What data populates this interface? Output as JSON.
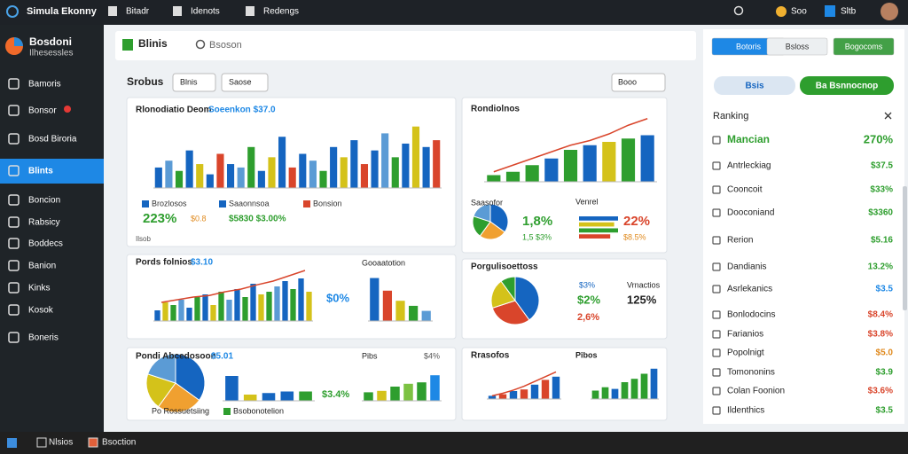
{
  "topbar": {
    "app_title": "Simula Ekonny",
    "menu": [
      "Bitadr",
      "Idenots",
      "Redengs"
    ],
    "coins": "Soo",
    "user": "Sltb"
  },
  "sidebar": {
    "brand": "Bosdoni",
    "brand_sub": "Ilhesessles",
    "active": 3,
    "items": [
      "Bamoris",
      "Bonsor",
      "Bosd Biroria",
      "Blints",
      "Boncion",
      "Rabsicy",
      "Boddecs",
      "Banion",
      "Kinks",
      "Kosok",
      "Boneris"
    ]
  },
  "tab": {
    "label": "Blinis",
    "search": "Bsoson"
  },
  "toolbar": {
    "title": "Srobus",
    "filters": [
      "Blnis",
      "Saose"
    ],
    "sort": "Booo"
  },
  "panels": [
    {
      "texts": [
        {
          "text": "Rlonodiatio Deom",
          "color": "#222"
        },
        {
          "text": "Soeenkon $37.0",
          "color": "#1e88e5"
        },
        {
          "text": "Brozlosos",
          "color": "#333",
          "swatch": "#1565c0"
        },
        {
          "text": "Saaonnsoa",
          "color": "#333",
          "swatch": "#1565c0"
        },
        {
          "text": "Bonsion",
          "color": "#333",
          "swatch": "#d9452b"
        },
        {
          "text": "223%",
          "color": "#2e9e2e"
        },
        {
          "text": "$0.8",
          "color": "#e08a1e"
        },
        {
          "text": "$5830 $3.00%",
          "color": "#2e9e2e"
        },
        {
          "text": "Ilsob",
          "color": "#555"
        }
      ],
      "charts": [
        {
          "type": "bar",
          "ylim": [
            0,
            100
          ],
          "values": [
            30,
            40,
            25,
            55,
            35,
            20,
            50,
            35,
            30,
            60,
            25,
            45,
            75,
            30,
            50,
            40,
            25,
            60,
            45,
            70,
            35,
            55,
            80,
            45,
            65,
            90,
            60,
            70
          ],
          "colors": [
            "#1565c0",
            "#5b9bd5",
            "#2e9e2e",
            "#1565c0",
            "#d4c21a",
            "#1565c0",
            "#d9452b"
          ]
        }
      ]
    },
    {
      "texts": [
        {
          "text": "Rondiolnos",
          "color": "#222"
        },
        {
          "text": "Saasofor",
          "color": "#222"
        },
        {
          "text": "1,8%",
          "color": "#2e9e2e"
        },
        {
          "text": "1,5 $3%",
          "color": "#2e9e2e"
        },
        {
          "text": "Venrel",
          "color": "#222"
        },
        {
          "text": "22%",
          "color": "#d9452b"
        },
        {
          "text": "$8.5%",
          "color": "#e08a1e"
        }
      ],
      "charts": [
        {
          "type": "bar",
          "ylim": [
            0,
            100
          ],
          "values": [
            10,
            15,
            25,
            35,
            48,
            55,
            60,
            65,
            70
          ],
          "colors": [
            "#2e9e2e",
            "#2e9e2e",
            "#2e9e2e",
            "#1565c0",
            "#2e9e2e",
            "#1565c0",
            "#d4c21a",
            "#2e9e2e",
            "#1565c0"
          ]
        },
        {
          "type": "line",
          "ylim": [
            0,
            100
          ],
          "values": [
            15,
            25,
            35,
            45,
            55,
            62,
            72,
            85,
            95
          ],
          "color": "#d9452b"
        },
        {
          "type": "pie",
          "values": [
            35,
            25,
            20,
            20
          ],
          "colors": [
            "#1565c0",
            "#f0a030",
            "#2e9e2e",
            "#5b9bd5"
          ]
        },
        {
          "type": "hbar",
          "ylim": [
            0,
            100
          ],
          "values": [
            100,
            90,
            100,
            80
          ],
          "colors": [
            "#1565c0",
            "#d4c21a",
            "#2e9e2e",
            "#d9452b"
          ]
        }
      ]
    },
    {
      "texts": [
        {
          "text": "Pords folnios",
          "color": "#222"
        },
        {
          "text": "$3.10",
          "color": "#1e88e5"
        },
        {
          "text": "$0%",
          "color": "#1e88e5"
        },
        {
          "text": "Gooaatotion",
          "color": "#222"
        }
      ],
      "charts": [
        {
          "type": "bar",
          "ylim": [
            0,
            100
          ],
          "values": [
            20,
            35,
            30,
            40,
            25,
            45,
            50,
            30,
            55,
            40,
            60,
            45,
            70,
            50,
            55,
            65,
            75,
            60,
            80,
            55
          ],
          "colors": [
            "#1565c0",
            "#d4c21a",
            "#2e9e2e",
            "#5b9bd5",
            "#1565c0",
            "#2e9e2e"
          ]
        },
        {
          "type": "line",
          "ylim": [
            0,
            100
          ],
          "values": [
            35,
            40,
            45,
            48,
            55,
            60,
            68,
            75,
            85,
            95
          ],
          "color": "#d9452b"
        },
        {
          "type": "bar",
          "ylim": [
            0,
            100
          ],
          "values": [
            85,
            60,
            40,
            30,
            20
          ],
          "colors": [
            "#1565c0",
            "#d9452b",
            "#d4c21a",
            "#2e9e2e",
            "#5b9bd5"
          ]
        }
      ]
    },
    {
      "texts": [
        {
          "text": "Porgulisoettoss",
          "color": "#222"
        },
        {
          "text": "$3%",
          "color": "#1565c0"
        },
        {
          "text": "$2%",
          "color": "#2e9e2e"
        },
        {
          "text": "2,6%",
          "color": "#d9452b"
        },
        {
          "text": "Vrnactios",
          "color": "#222"
        },
        {
          "text": "125%",
          "color": "#222"
        }
      ],
      "charts": [
        {
          "type": "pie",
          "values": [
            40,
            30,
            20,
            10
          ],
          "colors": [
            "#1565c0",
            "#d9452b",
            "#d4c21a",
            "#2e9e2e"
          ]
        }
      ]
    },
    {
      "texts": [
        {
          "text": "Pondi Abcedosoon",
          "color": "#222"
        },
        {
          "text": "$5.01",
          "color": "#1e88e5"
        },
        {
          "text": "$3.4%",
          "color": "#2e9e2e"
        },
        {
          "text": "Pibs",
          "color": "#222"
        },
        {
          "text": "$4%",
          "color": "#555"
        },
        {
          "text": "Po Rossuetsiing",
          "color": "#222"
        },
        {
          "text": "Bsobonotelion",
          "color": "#222",
          "swatch": "#2e9e2e"
        }
      ],
      "charts": [
        {
          "type": "pie",
          "values": [
            35,
            25,
            20,
            20
          ],
          "colors": [
            "#1565c0",
            "#f0a030",
            "#d4c21a",
            "#5b9bd5"
          ]
        },
        {
          "type": "bar",
          "ylim": [
            0,
            100
          ],
          "values": [
            80,
            20,
            25,
            30,
            30
          ],
          "colors": [
            "#1565c0",
            "#d4c21a",
            "#1565c0",
            "#1565c0",
            "#2e9e2e"
          ]
        },
        {
          "type": "bar",
          "ylim": [
            0,
            100
          ],
          "values": [
            30,
            35,
            50,
            60,
            65,
            90
          ],
          "colors": [
            "#2e9e2e",
            "#d4c21a",
            "#2e9e2e",
            "#7cc242",
            "#2e9e2e",
            "#1e88e5"
          ]
        }
      ]
    },
    {
      "texts": [
        {
          "text": "Rrasofos",
          "color": "#222"
        },
        {
          "text": "Pibos",
          "color": "#222"
        }
      ],
      "charts": [
        {
          "type": "bar",
          "ylim": [
            0,
            100
          ],
          "values": [
            10,
            15,
            25,
            30,
            45,
            60,
            70
          ],
          "colors": [
            "#1565c0",
            "#d9452b",
            "#1565c0",
            "#d9452b"
          ]
        },
        {
          "type": "line",
          "ylim": [
            0,
            100
          ],
          "values": [
            10,
            18,
            28,
            40,
            55,
            70,
            85
          ],
          "color": "#d9452b"
        },
        {
          "type": "bar",
          "ylim": [
            0,
            100
          ],
          "values": [
            25,
            35,
            30,
            50,
            60,
            75,
            90
          ],
          "colors": [
            "#2e9e2e",
            "#2e9e2e",
            "#1565c0",
            "#2e9e2e"
          ]
        }
      ]
    }
  ],
  "right_panel": {
    "buttons": [
      "Botoris",
      "Bsloss",
      "Bogocoms"
    ],
    "pills": [
      "Bsis",
      "Ba Bsnnocnop"
    ],
    "ranking": {
      "title": "Ranking",
      "rows": [
        {
          "label": "Mancian",
          "value": "270%",
          "color": "#2e9e2e"
        },
        {
          "label": "Antrleckiag",
          "value": "$37.5",
          "color": "#2e9e2e"
        },
        {
          "label": "Cooncoit",
          "value": "$33%",
          "color": "#2e9e2e"
        },
        {
          "label": "Dooconiand",
          "value": "$3360",
          "color": "#2e9e2e"
        },
        {
          "label": "Rerion",
          "value": "$5.16",
          "color": "#2e9e2e"
        },
        {
          "label": "Dandianis",
          "value": "13.2%",
          "color": "#2e9e2e"
        },
        {
          "label": "Asrlekanics",
          "value": "$3.5",
          "color": "#1e88e5"
        },
        {
          "label": "Bonlodocins",
          "value": "$8.4%",
          "color": "#d9452b"
        },
        {
          "label": "Farianios",
          "value": "$3.8%",
          "color": "#d9452b"
        },
        {
          "label": "Popolnigt",
          "value": "$5.0",
          "color": "#e08a1e"
        },
        {
          "label": "Tomononins",
          "value": "$3.9",
          "color": "#2e9e2e"
        },
        {
          "label": "Colan Foonion",
          "value": "$3.6%",
          "color": "#d9452b"
        },
        {
          "label": "Ildenthics",
          "value": "$3.5",
          "color": "#2e9e2e"
        }
      ]
    }
  },
  "taskbar": {
    "items": [
      "Nlsios",
      "Bsoction"
    ]
  }
}
